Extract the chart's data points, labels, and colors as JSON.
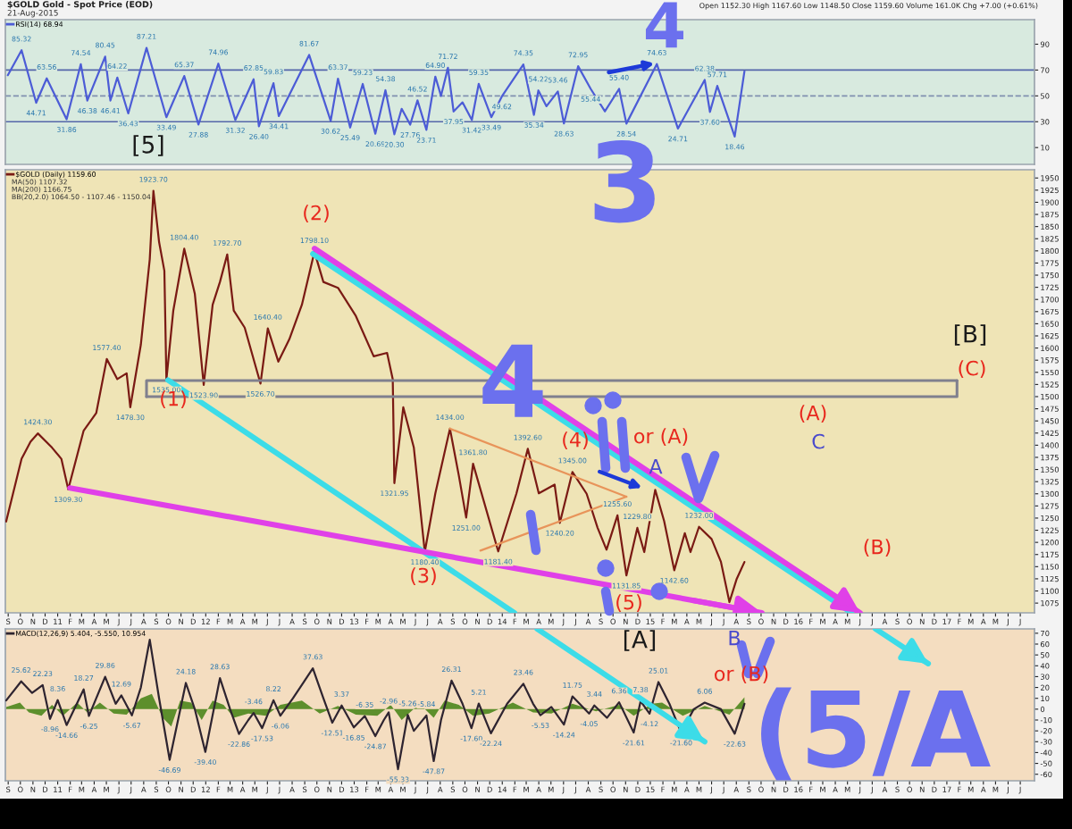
{
  "chart_data": [
    {
      "type": "line",
      "title": "$GOLD Gold - Spot Price (EOD)",
      "subtitle": "21-Aug-2015",
      "annotations": [
        "Open 1152.30 High 1167.60 Low 1148.50 Close 1159.60 Volume 161.0K Chg +7.00 (+0.61%)",
        "[5]",
        "4"
      ],
      "series": [
        {
          "name": "RSI(14) 68.94",
          "color": "#4c5cd6",
          "x": [
            "2010-08-31",
            "2010-10-04",
            "2010-11-09",
            "2010-12-05",
            "2011-01-23",
            "2011-02-27",
            "2011-03-15",
            "2011-04-28",
            "2011-05-11",
            "2011-05-28",
            "2011-06-24",
            "2011-08-08",
            "2011-09-26",
            "2011-11-09",
            "2011-12-14",
            "2012-02-01",
            "2012-03-14",
            "2012-04-28",
            "2012-05-11",
            "2012-06-16",
            "2012-06-29",
            "2012-09-12",
            "2012-11-04",
            "2012-11-22",
            "2012-12-22",
            "2013-01-22",
            "2013-02-22",
            "2013-03-19",
            "2013-04-10",
            "2013-04-28",
            "2013-05-19",
            "2013-06-06",
            "2013-06-28",
            "2013-07-20",
            "2013-08-03",
            "2013-08-20",
            "2013-09-03",
            "2013-09-25",
            "2013-10-18",
            "2013-11-04",
            "2013-12-05",
            "2013-12-31",
            "2014-02-22",
            "2014-03-20",
            "2014-03-31",
            "2014-04-20",
            "2014-05-18",
            "2014-06-02",
            "2014-07-07",
            "2014-08-07",
            "2014-09-11",
            "2014-10-16",
            "2014-11-03",
            "2015-01-17",
            "2015-03-10",
            "2015-05-15",
            "2015-05-28",
            "2015-06-15",
            "2015-07-28",
            "2015-08-21"
          ],
          "values": [
            66,
            85.32,
            44.71,
            63.56,
            31.86,
            74.54,
            46.38,
            80.45,
            46.41,
            64.22,
            36.43,
            87.21,
            33.49,
            65.37,
            27.88,
            74.96,
            31.32,
            62.85,
            26.4,
            59.83,
            34.41,
            81.67,
            30.62,
            63.37,
            25.49,
            59.23,
            20.69,
            54.38,
            20.3,
            40,
            27.76,
            46.52,
            23.71,
            64.9,
            50,
            71.72,
            37.95,
            45,
            31.42,
            59.35,
            33.49,
            49.62,
            74.35,
            35.34,
            54.22,
            42,
            53.46,
            28.63,
            72.95,
            55.44,
            38,
            55.4,
            28.54,
            74.63,
            24.71,
            62.38,
            37.6,
            57.71,
            18.46,
            69
          ],
          "value_labels": [
            null,
            "85.32",
            "44.71",
            "63.56",
            "31.86",
            "74.54",
            "46.38",
            "80.45",
            "46.41",
            "64.22",
            "36.43",
            "87.21",
            "33.49",
            "65.37",
            "27.88",
            "74.96",
            "31.32",
            "62.85",
            "26.40",
            "59.83",
            "34.41",
            "81.67",
            "30.62",
            "63.37",
            "25.49",
            "59.23",
            "20.69",
            "54.38",
            "20.30",
            null,
            "27.76",
            "46.52",
            "23.71",
            "64.90",
            null,
            "71.72",
            "37.95",
            null,
            "31.42",
            "59.35",
            "33.49",
            "49.62",
            "74.35",
            "35.34",
            "54.22",
            null,
            "53.46",
            "28.63",
            "72.95",
            "55.44",
            null,
            "55.40",
            "28.54",
            "74.63",
            "24.71",
            "62.38",
            "37.60",
            "57.71",
            "18.46",
            null
          ]
        }
      ],
      "xlim": [
        "2010-08-25",
        "2017-08-05"
      ],
      "ylim": [
        -3,
        109
      ],
      "yticks": [
        10,
        30,
        50,
        70,
        90
      ],
      "tick_labels": "y",
      "legend": "top left",
      "ref_lines": [
        {
          "axis": "y",
          "value": 70,
          "color": "#5566aa"
        },
        {
          "axis": "y",
          "value": 50,
          "color": "#8090b0",
          "line_style": "dashed"
        },
        {
          "axis": "y",
          "value": 30,
          "color": "#5566aa"
        }
      ]
    },
    {
      "type": "line",
      "annotations": [
        "MA(50) 1107.32",
        "MA(200) 1166.75",
        "BB(20,2.0) 1064.50 - 1107.46 - 1150.04",
        "(1)",
        "(2)",
        "(3)",
        "(4)",
        "or (A)",
        "(5)",
        "(A)",
        "(B)",
        "(C)",
        "[B]",
        "A",
        "C",
        "3",
        "4"
      ],
      "series": [
        {
          "name": "$GOLD (Daily) 1159.60",
          "color": "#7a1a14",
          "x": [
            "2010-08-27",
            "2010-10-04",
            "2010-10-26",
            "2010-11-13",
            "2010-12-18",
            "2011-01-10",
            "2011-01-27",
            "2011-03-06",
            "2011-04-06",
            "2011-05-02",
            "2011-05-28",
            "2011-06-20",
            "2011-06-29",
            "2011-07-25",
            "2011-08-16",
            "2011-08-25",
            "2011-09-08",
            "2011-09-21",
            "2011-09-26",
            "2011-10-13",
            "2011-11-09",
            "2011-12-05",
            "2011-12-27",
            "2012-01-18",
            "2012-02-05",
            "2012-02-23",
            "2012-03-10",
            "2012-04-06",
            "2012-05-15",
            "2012-06-02",
            "2012-06-28",
            "2012-07-25",
            "2012-08-25",
            "2012-09-25",
            "2012-10-17",
            "2012-11-22",
            "2013-01-05",
            "2013-02-18",
            "2013-03-23",
            "2013-04-06",
            "2013-04-10",
            "2013-05-02",
            "2013-05-28",
            "2013-06-24",
            "2013-07-20",
            "2013-08-25",
            "2013-09-16",
            "2013-10-04",
            "2013-10-21",
            "2013-12-22",
            "2014-02-05",
            "2014-03-05",
            "2014-04-01",
            "2014-05-10",
            "2014-05-23",
            "2014-06-23",
            "2014-07-28",
            "2014-08-24",
            "2014-09-15",
            "2014-10-12",
            "2014-11-03",
            "2014-11-30",
            "2014-12-17",
            "2015-01-13",
            "2015-02-04",
            "2015-03-01",
            "2015-03-27",
            "2015-04-10",
            "2015-05-01",
            "2015-06-01",
            "2015-06-24",
            "2015-07-15",
            "2015-08-02",
            "2015-08-21"
          ],
          "values": [
            1243,
            1372,
            1407,
            1424.3,
            1395,
            1372,
            1309.3,
            1430,
            1466,
            1577.4,
            1536,
            1548,
            1478.3,
            1607,
            1783,
            1923.7,
            1818,
            1759,
            1535,
            1677,
            1804.4,
            1712,
            1523.9,
            1689,
            1736,
            1792.7,
            1677,
            1642,
            1526.7,
            1640.4,
            1572,
            1618,
            1689,
            1798.1,
            1736,
            1724,
            1666,
            1583,
            1590,
            1536,
            1321.95,
            1478,
            1395,
            1180.4,
            1301,
            1434,
            1337,
            1251,
            1361.8,
            1181.4,
            1301,
            1392.6,
            1301,
            1319,
            1240.2,
            1345,
            1300,
            1230,
            1185,
            1255.6,
            1131.85,
            1229.8,
            1180,
            1308,
            1244,
            1142.6,
            1219,
            1180,
            1232,
            1207,
            1160,
            1077,
            1125,
            1159.6
          ],
          "value_labels": [
            null,
            null,
            null,
            "1424.30",
            null,
            null,
            "1309.30",
            null,
            null,
            "1577.40",
            null,
            null,
            "1478.30",
            null,
            null,
            "1923.70",
            null,
            null,
            "1535.00",
            null,
            "1804.40",
            null,
            "1523.90",
            null,
            null,
            "1792.70",
            null,
            null,
            "1526.70",
            "1640.40",
            null,
            null,
            null,
            "1798.10",
            null,
            null,
            null,
            null,
            null,
            null,
            "1321.95",
            null,
            null,
            "1180.40",
            null,
            "1434.00",
            null,
            "1251.00",
            "1361.80",
            "1181.40",
            null,
            "1392.60",
            null,
            null,
            "1240.20",
            "1345.00",
            null,
            null,
            null,
            "1255.60",
            "1131.85",
            "1229.80",
            null,
            null,
            null,
            "1142.60",
            null,
            null,
            "1232.00",
            null,
            null,
            null,
            null,
            null
          ]
        },
        {
          "color": "#e8945a",
          "x": [
            "2013-08-25",
            "2014-11-03"
          ],
          "values": [
            1434,
            1294
          ]
        },
        {
          "color": "#e8945a",
          "x": [
            "2013-11-08",
            "2014-11-03"
          ],
          "values": [
            1183,
            1294
          ]
        },
        {
          "color": "#80808e",
          "x": [
            "2011-08-08",
            "2011-08-08",
            "2017-01-26"
          ],
          "values": [
            1500,
            1533,
            1533
          ]
        },
        {
          "color": "#80808e",
          "x": [
            "2011-08-08",
            "2017-01-26",
            "2017-01-26"
          ],
          "values": [
            1500,
            1500,
            1533
          ]
        },
        {
          "color": "#3cdce8",
          "x": [
            "2012-09-21",
            "2016-05-11"
          ],
          "values": [
            1794,
            1055
          ]
        },
        {
          "color": "#3cdce8",
          "x": [
            "2011-09-30",
            "2014-01-31"
          ],
          "values": [
            1534,
            1055
          ]
        },
        {
          "color": "#e040e8",
          "x": [
            "2011-01-31",
            "2015-10-03"
          ],
          "values": [
            1312,
            1055
          ]
        },
        {
          "color": "#e040e8",
          "x": [
            "2012-09-25",
            "2016-06-01"
          ],
          "values": [
            1805,
            1055
          ]
        }
      ],
      "xlim": [
        "2010-08-25",
        "2017-08-05"
      ],
      "ylim": [
        1055,
        1967
      ],
      "yticks": [
        1075,
        1100,
        1125,
        1150,
        1175,
        1200,
        1225,
        1250,
        1275,
        1300,
        1325,
        1350,
        1375,
        1400,
        1425,
        1450,
        1475,
        1500,
        1525,
        1550,
        1575,
        1600,
        1625,
        1650,
        1675,
        1700,
        1725,
        1750,
        1775,
        1800,
        1825,
        1850,
        1875,
        1900,
        1925,
        1950
      ],
      "xticks": [
        {
          "value": "2010-09-01",
          "label": "S"
        },
        {
          "value": "2010-10-01",
          "label": "O"
        },
        {
          "value": "2010-11-01",
          "label": "N"
        },
        {
          "value": "2010-12-01",
          "label": "D"
        },
        {
          "value": "2011-01-01",
          "label": "11"
        },
        {
          "value": "2011-02-01",
          "label": "F"
        },
        {
          "value": "2011-03-01",
          "label": "M"
        },
        {
          "value": "2011-04-01",
          "label": "A"
        },
        {
          "value": "2011-05-01",
          "label": "M"
        },
        {
          "value": "2011-06-01",
          "label": "J"
        },
        {
          "value": "2011-07-01",
          "label": "J"
        },
        {
          "value": "2011-08-01",
          "label": "A"
        },
        {
          "value": "2011-09-01",
          "label": "S"
        },
        {
          "value": "2011-10-01",
          "label": "O"
        },
        {
          "value": "2011-11-01",
          "label": "N"
        },
        {
          "value": "2011-12-01",
          "label": "D"
        },
        {
          "value": "2012-01-01",
          "label": "12"
        },
        {
          "value": "2012-02-01",
          "label": "F"
        },
        {
          "value": "2012-03-01",
          "label": "M"
        },
        {
          "value": "2012-04-01",
          "label": "A"
        },
        {
          "value": "2012-05-01",
          "label": "M"
        },
        {
          "value": "2012-06-01",
          "label": "J"
        },
        {
          "value": "2012-07-01",
          "label": "J"
        },
        {
          "value": "2012-08-01",
          "label": "A"
        },
        {
          "value": "2012-09-01",
          "label": "S"
        },
        {
          "value": "2012-10-01",
          "label": "O"
        },
        {
          "value": "2012-11-01",
          "label": "N"
        },
        {
          "value": "2012-12-01",
          "label": "D"
        },
        {
          "value": "2013-01-01",
          "label": "13"
        },
        {
          "value": "2013-02-01",
          "label": "F"
        },
        {
          "value": "2013-03-01",
          "label": "M"
        },
        {
          "value": "2013-04-01",
          "label": "A"
        },
        {
          "value": "2013-05-01",
          "label": "M"
        },
        {
          "value": "2013-06-01",
          "label": "J"
        },
        {
          "value": "2013-07-01",
          "label": "J"
        },
        {
          "value": "2013-08-01",
          "label": "A"
        },
        {
          "value": "2013-09-01",
          "label": "S"
        },
        {
          "value": "2013-10-01",
          "label": "O"
        },
        {
          "value": "2013-11-01",
          "label": "N"
        },
        {
          "value": "2013-12-01",
          "label": "D"
        },
        {
          "value": "2014-01-01",
          "label": "14"
        },
        {
          "value": "2014-02-01",
          "label": "F"
        },
        {
          "value": "2014-03-01",
          "label": "M"
        },
        {
          "value": "2014-04-01",
          "label": "A"
        },
        {
          "value": "2014-05-01",
          "label": "M"
        },
        {
          "value": "2014-06-01",
          "label": "J"
        },
        {
          "value": "2014-07-01",
          "label": "J"
        },
        {
          "value": "2014-08-01",
          "label": "A"
        },
        {
          "value": "2014-09-01",
          "label": "S"
        },
        {
          "value": "2014-10-01",
          "label": "O"
        },
        {
          "value": "2014-11-01",
          "label": "N"
        },
        {
          "value": "2014-12-01",
          "label": "D"
        },
        {
          "value": "2015-01-01",
          "label": "15"
        },
        {
          "value": "2015-02-01",
          "label": "F"
        },
        {
          "value": "2015-03-01",
          "label": "M"
        },
        {
          "value": "2015-04-01",
          "label": "A"
        },
        {
          "value": "2015-05-01",
          "label": "M"
        },
        {
          "value": "2015-06-01",
          "label": "J"
        },
        {
          "value": "2015-07-01",
          "label": "J"
        },
        {
          "value": "2015-08-01",
          "label": "A"
        },
        {
          "value": "2015-09-01",
          "label": "S"
        },
        {
          "value": "2015-10-01",
          "label": "O"
        },
        {
          "value": "2015-11-01",
          "label": "N"
        },
        {
          "value": "2015-12-01",
          "label": "D"
        },
        {
          "value": "2016-01-01",
          "label": "16"
        },
        {
          "value": "2016-02-01",
          "label": "F"
        },
        {
          "value": "2016-03-01",
          "label": "M"
        },
        {
          "value": "2016-04-01",
          "label": "A"
        },
        {
          "value": "2016-05-01",
          "label": "M"
        },
        {
          "value": "2016-06-01",
          "label": "J"
        },
        {
          "value": "2016-07-01",
          "label": "J"
        },
        {
          "value": "2016-08-01",
          "label": "A"
        },
        {
          "value": "2016-09-01",
          "label": "S"
        },
        {
          "value": "2016-10-01",
          "label": "O"
        },
        {
          "value": "2016-11-01",
          "label": "N"
        },
        {
          "value": "2016-12-01",
          "label": "D"
        },
        {
          "value": "2017-01-01",
          "label": "17"
        },
        {
          "value": "2017-02-01",
          "label": "F"
        },
        {
          "value": "2017-03-01",
          "label": "M"
        },
        {
          "value": "2017-04-01",
          "label": "A"
        },
        {
          "value": "2017-05-01",
          "label": "M"
        },
        {
          "value": "2017-06-01",
          "label": "J"
        },
        {
          "value": "2017-07-01",
          "label": "J"
        }
      ],
      "legend": "top left"
    },
    {
      "type": "line",
      "annotations": [
        "[A]",
        "B",
        "or (B)",
        "(5/A"
      ],
      "series": [
        {
          "type": "area",
          "color": "#5d8f2c",
          "x": [
            "2010-08-27",
            "2010-09-30",
            "2010-10-22",
            "2010-11-22",
            "2010-12-18",
            "2011-01-14",
            "2011-02-18",
            "2011-03-15",
            "2011-04-15",
            "2011-05-19",
            "2011-06-20",
            "2011-07-25",
            "2011-08-21",
            "2011-09-17",
            "2011-10-08",
            "2011-10-30",
            "2011-11-26",
            "2011-12-22",
            "2012-01-18",
            "2012-02-14",
            "2012-03-10",
            "2012-04-15",
            "2012-05-28",
            "2012-07-03",
            "2012-08-25",
            "2012-10-08",
            "2012-11-22",
            "2013-01-05",
            "2013-02-27",
            "2013-04-01",
            "2013-04-28",
            "2013-06-11",
            "2013-07-16",
            "2013-08-12",
            "2013-09-16",
            "2013-10-21",
            "2013-11-30",
            "2014-01-27",
            "2014-03-18",
            "2014-05-02",
            "2014-06-23",
            "2014-08-20",
            "2014-10-16",
            "2014-11-21",
            "2015-01-04",
            "2015-01-30",
            "2015-03-22",
            "2015-05-15",
            "2015-07-15",
            "2015-08-21"
          ],
          "values": [
            2,
            6,
            -3,
            -6,
            4,
            -6,
            6,
            -3,
            6,
            -4,
            -5,
            10,
            14,
            -8,
            -16,
            8,
            6,
            -10,
            8,
            4,
            -8,
            -4,
            -6,
            4,
            8,
            -4,
            3,
            -5,
            -6,
            4,
            -10,
            5,
            -8,
            8,
            4,
            -6,
            -4,
            6,
            -3,
            -4,
            5,
            -2,
            4,
            -6,
            5,
            6,
            -6,
            3,
            -5,
            11
          ]
        },
        {
          "name": "MACD(12,26,9) 5.404, -5.550, 10.954",
          "color": "#2e2430",
          "x": [
            "2010-08-27",
            "2010-10-03",
            "2010-10-30",
            "2010-11-25",
            "2010-12-13",
            "2011-01-01",
            "2011-01-23",
            "2011-03-06",
            "2011-03-19",
            "2011-04-28",
            "2011-05-24",
            "2011-06-07",
            "2011-07-03",
            "2011-07-25",
            "2011-08-16",
            "2011-09-08",
            "2011-10-04",
            "2011-11-13",
            "2011-12-05",
            "2011-12-31",
            "2012-02-05",
            "2012-03-01",
            "2012-03-23",
            "2012-04-15",
            "2012-04-28",
            "2012-05-19",
            "2012-06-16",
            "2012-07-03",
            "2012-08-03",
            "2012-09-21",
            "2012-10-17",
            "2012-11-08",
            "2012-12-01",
            "2012-12-31",
            "2013-01-27",
            "2013-02-22",
            "2013-03-15",
            "2013-03-27",
            "2013-04-19",
            "2013-05-13",
            "2013-05-28",
            "2013-06-28",
            "2013-07-16",
            "2013-08-03",
            "2013-08-29",
            "2013-09-25",
            "2013-10-17",
            "2013-11-04",
            "2013-12-04",
            "2014-01-13",
            "2014-02-22",
            "2014-03-18",
            "2014-04-05",
            "2014-05-02",
            "2014-06-02",
            "2014-06-23",
            "2014-08-03",
            "2014-08-16",
            "2014-09-16",
            "2014-10-16",
            "2014-11-21",
            "2014-12-08",
            "2014-12-30",
            "2015-01-21",
            "2015-02-17",
            "2015-03-18",
            "2015-04-18",
            "2015-05-15",
            "2015-06-24",
            "2015-07-28",
            "2015-08-21"
          ],
          "values": [
            8,
            25.62,
            15,
            22.23,
            -8.96,
            8.36,
            -14.66,
            18.27,
            -6.25,
            29.86,
            5,
            12.69,
            -5.67,
            20,
            64,
            10,
            -46.69,
            24.18,
            0,
            -39.4,
            28.63,
            0,
            -22.86,
            -10,
            -3.46,
            -17.53,
            8.22,
            -6.06,
            10,
            37.63,
            10,
            -12.51,
            3.37,
            -16.85,
            -6.35,
            -24.87,
            -10,
            -2.96,
            -55.33,
            -5.26,
            -20,
            -5.84,
            -47.87,
            -10,
            26.31,
            5,
            -17.6,
            5.21,
            -22.24,
            5,
            23.46,
            5,
            -5.53,
            2,
            -14.24,
            11.75,
            -4.05,
            3.44,
            -8,
            6.36,
            -21.61,
            7.38,
            -4.12,
            25.01,
            5,
            -21.6,
            0,
            6.06,
            0,
            -22.63,
            5
          ],
          "value_labels": [
            null,
            "25.62",
            null,
            "22.23",
            "-8.96",
            "8.36",
            "-14.66",
            "18.27",
            "-6.25",
            "29.86",
            null,
            "12.69",
            "-5.67",
            null,
            null,
            null,
            "-46.69",
            "24.18",
            null,
            "-39.40",
            "28.63",
            null,
            "-22.86",
            null,
            "-3.46",
            "-17.53",
            "8.22",
            "-6.06",
            null,
            "37.63",
            null,
            "-12.51",
            "3.37",
            "-16.85",
            "-6.35",
            "-24.87",
            null,
            "-2.96",
            "-55.33",
            "-5.26",
            null,
            "-5.84",
            "-47.87",
            null,
            "26.31",
            null,
            "-17.60",
            "5.21",
            "-22.24",
            null,
            "23.46",
            null,
            "-5.53",
            null,
            "-14.24",
            "11.75",
            "-4.05",
            "3.44",
            null,
            "6.36",
            "-21.61",
            "7.38",
            "-4.12",
            "25.01",
            null,
            "-21.60",
            null,
            "6.06",
            null,
            "-22.63",
            null
          ]
        },
        {
          "color": "#3cdce8",
          "x": [
            "2016-07-09",
            "2016-11-16"
          ],
          "values": [
            74,
            42
          ]
        },
        {
          "color": "#3cdce8",
          "x": [
            "2014-03-28",
            "2015-05-15"
          ],
          "values": [
            74,
            -30
          ]
        }
      ],
      "xlim": [
        "2010-08-25",
        "2017-08-05"
      ],
      "ylim": [
        -66,
        74
      ],
      "yticks": [
        -60,
        -50,
        -40,
        -30,
        -20,
        -10,
        0,
        10,
        20,
        30,
        40,
        50,
        60,
        70
      ],
      "xticks": [
        {
          "value": "2010-09-01",
          "label": "S"
        },
        {
          "value": "2010-10-01",
          "label": "O"
        },
        {
          "value": "2010-11-01",
          "label": "N"
        },
        {
          "value": "2010-12-01",
          "label": "D"
        },
        {
          "value": "2011-01-01",
          "label": "11"
        },
        {
          "value": "2011-02-01",
          "label": "F"
        },
        {
          "value": "2011-03-01",
          "label": "M"
        },
        {
          "value": "2011-04-01",
          "label": "A"
        },
        {
          "value": "2011-05-01",
          "label": "M"
        },
        {
          "value": "2011-06-01",
          "label": "J"
        },
        {
          "value": "2011-07-01",
          "label": "J"
        },
        {
          "value": "2011-08-01",
          "label": "A"
        },
        {
          "value": "2011-09-01",
          "label": "S"
        },
        {
          "value": "2011-10-01",
          "label": "O"
        },
        {
          "value": "2011-11-01",
          "label": "N"
        },
        {
          "value": "2011-12-01",
          "label": "D"
        },
        {
          "value": "2012-01-01",
          "label": "12"
        },
        {
          "value": "2012-02-01",
          "label": "F"
        },
        {
          "value": "2012-03-01",
          "label": "M"
        },
        {
          "value": "2012-04-01",
          "label": "A"
        },
        {
          "value": "2012-05-01",
          "label": "M"
        },
        {
          "value": "2012-06-01",
          "label": "J"
        },
        {
          "value": "2012-07-01",
          "label": "J"
        },
        {
          "value": "2012-08-01",
          "label": "A"
        },
        {
          "value": "2012-09-01",
          "label": "S"
        },
        {
          "value": "2012-10-01",
          "label": "O"
        },
        {
          "value": "2012-11-01",
          "label": "N"
        },
        {
          "value": "2012-12-01",
          "label": "D"
        },
        {
          "value": "2013-01-01",
          "label": "13"
        },
        {
          "value": "2013-02-01",
          "label": "F"
        },
        {
          "value": "2013-03-01",
          "label": "M"
        },
        {
          "value": "2013-04-01",
          "label": "A"
        },
        {
          "value": "2013-05-01",
          "label": "M"
        },
        {
          "value": "2013-06-01",
          "label": "J"
        },
        {
          "value": "2013-07-01",
          "label": "J"
        },
        {
          "value": "2013-08-01",
          "label": "A"
        },
        {
          "value": "2013-09-01",
          "label": "S"
        },
        {
          "value": "2013-10-01",
          "label": "O"
        },
        {
          "value": "2013-11-01",
          "label": "N"
        },
        {
          "value": "2013-12-01",
          "label": "D"
        },
        {
          "value": "2014-01-01",
          "label": "14"
        },
        {
          "value": "2014-02-01",
          "label": "F"
        },
        {
          "value": "2014-03-01",
          "label": "M"
        },
        {
          "value": "2014-04-01",
          "label": "A"
        },
        {
          "value": "2014-05-01",
          "label": "M"
        },
        {
          "value": "2014-06-01",
          "label": "J"
        },
        {
          "value": "2014-07-01",
          "label": "J"
        },
        {
          "value": "2014-08-01",
          "label": "A"
        },
        {
          "value": "2014-09-01",
          "label": "S"
        },
        {
          "value": "2014-10-01",
          "label": "O"
        },
        {
          "value": "2014-11-01",
          "label": "N"
        },
        {
          "value": "2014-12-01",
          "label": "D"
        },
        {
          "value": "2015-01-01",
          "label": "15"
        },
        {
          "value": "2015-02-01",
          "label": "F"
        },
        {
          "value": "2015-03-01",
          "label": "M"
        },
        {
          "value": "2015-04-01",
          "label": "A"
        },
        {
          "value": "2015-05-01",
          "label": "M"
        },
        {
          "value": "2015-06-01",
          "label": "J"
        },
        {
          "value": "2015-07-01",
          "label": "J"
        },
        {
          "value": "2015-08-01",
          "label": "A"
        },
        {
          "value": "2015-09-01",
          "label": "S"
        },
        {
          "value": "2015-10-01",
          "label": "O"
        },
        {
          "value": "2015-11-01",
          "label": "N"
        },
        {
          "value": "2015-12-01",
          "label": "D"
        },
        {
          "value": "2016-01-01",
          "label": "16"
        },
        {
          "value": "2016-02-01",
          "label": "F"
        },
        {
          "value": "2016-03-01",
          "label": "M"
        },
        {
          "value": "2016-04-01",
          "label": "A"
        },
        {
          "value": "2016-05-01",
          "label": "M"
        },
        {
          "value": "2016-06-01",
          "label": "J"
        },
        {
          "value": "2016-07-01",
          "label": "J"
        },
        {
          "value": "2016-08-01",
          "label": "A"
        },
        {
          "value": "2016-09-01",
          "label": "S"
        },
        {
          "value": "2016-10-01",
          "label": "O"
        },
        {
          "value": "2016-11-01",
          "label": "N"
        },
        {
          "value": "2016-12-01",
          "label": "D"
        },
        {
          "value": "2017-01-01",
          "label": "17"
        },
        {
          "value": "2017-02-01",
          "label": "F"
        },
        {
          "value": "2017-03-01",
          "label": "M"
        },
        {
          "value": "2017-04-01",
          "label": "A"
        },
        {
          "value": "2017-05-01",
          "label": "M"
        },
        {
          "value": "2017-06-01",
          "label": "J"
        },
        {
          "value": "2017-07-01",
          "label": "J"
        }
      ],
      "legend": "top left"
    }
  ]
}
